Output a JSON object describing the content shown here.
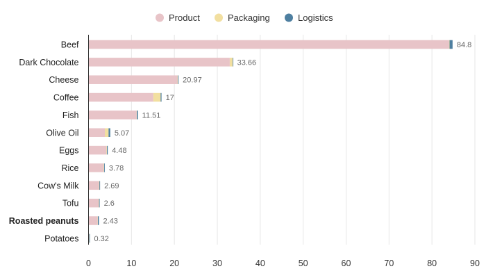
{
  "chart_data": {
    "type": "bar",
    "orientation": "horizontal",
    "stacked": true,
    "title": "",
    "xlabel": "",
    "ylabel": "",
    "xlim": [
      0,
      90
    ],
    "x_ticks": [
      0,
      10,
      20,
      30,
      40,
      50,
      60,
      70,
      80,
      90
    ],
    "grid": "vertical",
    "legend_position": "top-center",
    "highlighted_category": "Roasted peanuts",
    "categories": [
      "Beef",
      "Dark Chocolate",
      "Cheese",
      "Coffee",
      "Fish",
      "Olive Oil",
      "Eggs",
      "Rice",
      "Cow's Milk",
      "Tofu",
      "Roasted peanuts",
      "Potatoes"
    ],
    "totals": [
      "84.8",
      "33.66",
      "20.97",
      "17",
      "11.51",
      "5.07",
      "4.48",
      "3.78",
      "2.69",
      "2.6",
      "2.43",
      "0.32"
    ],
    "series": [
      {
        "name": "Product",
        "color": "#e8c4c8",
        "values": [
          84.0,
          32.9,
          20.72,
          15.1,
          11.21,
          3.8,
          4.18,
          3.53,
          2.44,
          2.35,
          2.13,
          0.12
        ]
      },
      {
        "name": "Packaging",
        "color": "#f2dfa0",
        "values": [
          0.1,
          0.7,
          0.1,
          1.7,
          0.05,
          0.87,
          0.1,
          0.1,
          0.1,
          0.1,
          0.05,
          0.05
        ]
      },
      {
        "name": "Logistics",
        "color": "#4e7fa0",
        "values": [
          0.7,
          0.06,
          0.15,
          0.2,
          0.25,
          0.4,
          0.2,
          0.15,
          0.15,
          0.15,
          0.25,
          0.15
        ]
      }
    ]
  }
}
